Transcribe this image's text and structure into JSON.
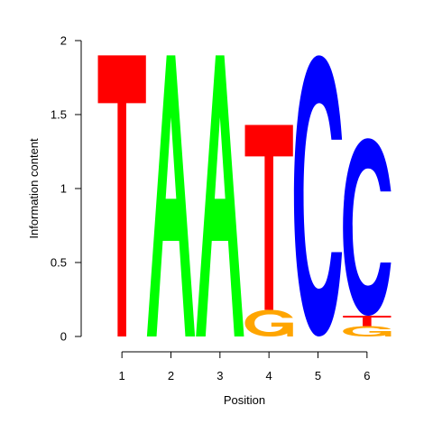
{
  "chart_data": {
    "type": "sequence-logo",
    "xlabel": "Position",
    "ylabel": "Information content",
    "ylim": [
      0,
      2
    ],
    "y_ticks": [
      "0",
      "0.5",
      "1",
      "1.5",
      "2"
    ],
    "positions": [
      "1",
      "2",
      "3",
      "4",
      "5",
      "6"
    ],
    "letter_colors": {
      "A": "#00ff00",
      "C": "#0000ff",
      "G": "#ffa500",
      "T": "#ff0000"
    },
    "stacks": [
      [
        {
          "letter": "T",
          "bits": 1.9
        }
      ],
      [
        {
          "letter": "A",
          "bits": 1.9
        }
      ],
      [
        {
          "letter": "A",
          "bits": 1.9
        }
      ],
      [
        {
          "letter": "G",
          "bits": 0.18
        },
        {
          "letter": "T",
          "bits": 1.25
        }
      ],
      [
        {
          "letter": "C",
          "bits": 1.9
        }
      ],
      [
        {
          "letter": "G",
          "bits": 0.07
        },
        {
          "letter": "T",
          "bits": 0.07
        },
        {
          "letter": "C",
          "bits": 1.2
        }
      ]
    ]
  }
}
